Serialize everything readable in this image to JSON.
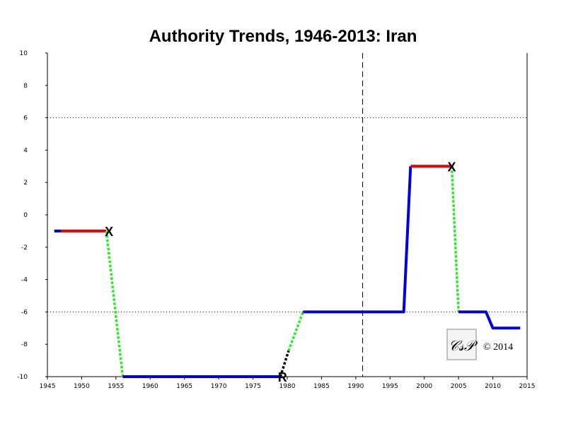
{
  "chart_data": {
    "type": "line",
    "title": "Authority Trends, 1946-2013: Iran",
    "xlabel": "",
    "ylabel": "",
    "xlim": [
      1945,
      2015
    ],
    "ylim": [
      -10,
      10
    ],
    "x_ticks": [
      1945,
      1950,
      1955,
      1960,
      1965,
      1970,
      1975,
      1980,
      1985,
      1990,
      1995,
      2000,
      2005,
      2010,
      2015
    ],
    "y_ticks": [
      10,
      8,
      6,
      4,
      2,
      0,
      -2,
      -4,
      -6,
      -8,
      -10
    ],
    "reference_lines_y": [
      6,
      -6
    ],
    "reference_line_x": 1991,
    "colors": {
      "solid_low": "#0000dd",
      "solid_mid": "#ee0000",
      "transition": "#22ee22",
      "interregnum": "#000000"
    },
    "segments": [
      {
        "style": "solid",
        "color": "#0000dd",
        "points": [
          [
            1946,
            -1
          ],
          [
            1947,
            -1
          ]
        ]
      },
      {
        "style": "solid",
        "color": "#ee0000",
        "points": [
          [
            1947,
            -1
          ],
          [
            1953.6,
            -1
          ]
        ]
      },
      {
        "style": "dotted",
        "color": "#22ee22",
        "points": [
          [
            1953.6,
            -1
          ],
          [
            1956,
            -10
          ]
        ]
      },
      {
        "style": "solid",
        "color": "#0000dd",
        "points": [
          [
            1956,
            -10
          ],
          [
            1979,
            -10
          ]
        ]
      },
      {
        "style": "dotted",
        "color": "#000000",
        "points": [
          [
            1979,
            -10
          ],
          [
            1980.2,
            -8.4
          ]
        ]
      },
      {
        "style": "dotted",
        "color": "#22ee22",
        "points": [
          [
            1980.2,
            -8.4
          ],
          [
            1982.3,
            -6
          ]
        ]
      },
      {
        "style": "solid",
        "color": "#0000dd",
        "points": [
          [
            1982.3,
            -6
          ],
          [
            1997,
            -6
          ],
          [
            1998,
            3
          ]
        ]
      },
      {
        "style": "solid",
        "color": "#ee0000",
        "points": [
          [
            1998,
            3
          ],
          [
            2004,
            3
          ]
        ]
      },
      {
        "style": "dotted",
        "color": "#22ee22",
        "points": [
          [
            2004,
            3
          ],
          [
            2005,
            -6
          ]
        ]
      },
      {
        "style": "solid",
        "color": "#0000dd",
        "points": [
          [
            2005,
            -6
          ],
          [
            2009,
            -6
          ],
          [
            2010,
            -7
          ],
          [
            2014,
            -7
          ]
        ]
      }
    ],
    "markers": [
      {
        "label": "X",
        "x": 1954,
        "y": -1
      },
      {
        "label": "R",
        "x": 1979.3,
        "y": -10
      },
      {
        "label": "X",
        "x": 2004,
        "y": 3
      }
    ]
  },
  "watermark": {
    "logo_text": "CSP",
    "copyright": "© 2014"
  }
}
